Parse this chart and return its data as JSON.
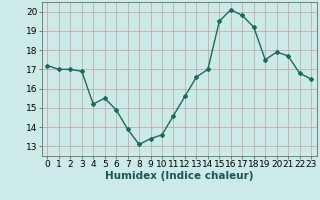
{
  "x": [
    0,
    1,
    2,
    3,
    4,
    5,
    6,
    7,
    8,
    9,
    10,
    11,
    12,
    13,
    14,
    15,
    16,
    17,
    18,
    19,
    20,
    21,
    22,
    23
  ],
  "y": [
    17.2,
    17.0,
    17.0,
    16.9,
    15.2,
    15.5,
    14.9,
    13.9,
    13.1,
    13.4,
    13.6,
    14.6,
    15.6,
    16.6,
    17.0,
    19.5,
    20.1,
    19.8,
    19.2,
    17.5,
    17.9,
    17.7,
    16.8,
    16.5
  ],
  "line_color": "#1a6b5a",
  "marker": "D",
  "marker_size": 2.0,
  "bg_color": "#cceae8",
  "grid_color": "#c0a0a0",
  "xlabel": "Humidex (Indice chaleur)",
  "ylim": [
    12.5,
    20.5
  ],
  "xlim": [
    -0.5,
    23.5
  ],
  "yticks": [
    13,
    14,
    15,
    16,
    17,
    18,
    19,
    20
  ],
  "xticks": [
    0,
    1,
    2,
    3,
    4,
    5,
    6,
    7,
    8,
    9,
    10,
    11,
    12,
    13,
    14,
    15,
    16,
    17,
    18,
    19,
    20,
    21,
    22,
    23
  ],
  "xlabel_fontsize": 7.5,
  "tick_fontsize": 6.5,
  "line_width": 1.0
}
